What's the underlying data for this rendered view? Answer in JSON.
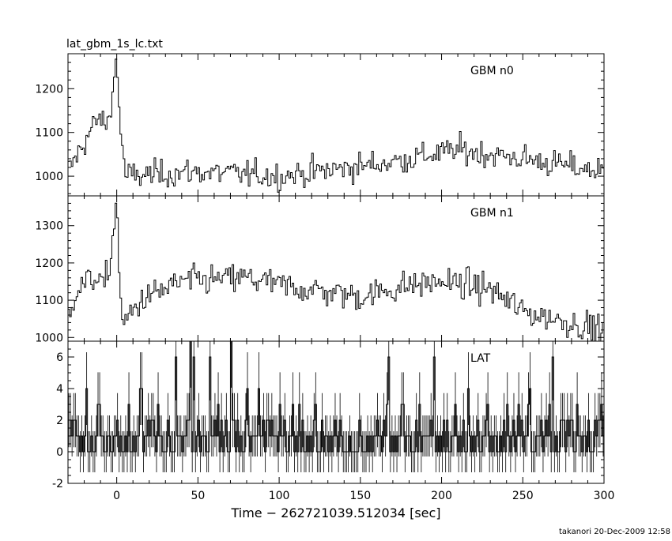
{
  "header": {
    "title": "lat_gbm_1s_lc.txt"
  },
  "footer": {
    "credit": "takanori 20-Dec-2009 12:58"
  },
  "chart_data": [
    {
      "type": "line",
      "style": "histogram",
      "series_name": "GBM n0",
      "xlim": [
        -30,
        300
      ],
      "ylim": [
        955,
        1280
      ],
      "yticks_major": [
        1000,
        1100,
        1200
      ],
      "yminor_step": 20,
      "key_points": [
        {
          "x": -30,
          "y": 1010
        },
        {
          "x": -12,
          "y": 1130
        },
        {
          "x": -5,
          "y": 1120
        },
        {
          "x": 0,
          "y": 1275
        },
        {
          "x": 1,
          "y": 1180
        },
        {
          "x": 5,
          "y": 1000
        },
        {
          "x": 50,
          "y": 1010
        },
        {
          "x": 100,
          "y": 1000
        },
        {
          "x": 165,
          "y": 1030
        },
        {
          "x": 195,
          "y": 1050
        },
        {
          "x": 210,
          "y": 1060
        },
        {
          "x": 250,
          "y": 1040
        },
        {
          "x": 300,
          "y": 1010
        }
      ],
      "noise_amplitude": 22
    },
    {
      "type": "line",
      "style": "histogram",
      "series_name": "GBM n1",
      "xlim": [
        -30,
        300
      ],
      "ylim": [
        990,
        1380
      ],
      "yticks_major": [
        1000,
        1100,
        1200,
        1300
      ],
      "yminor_step": 20,
      "key_points": [
        {
          "x": -30,
          "y": 1050
        },
        {
          "x": -25,
          "y": 1130
        },
        {
          "x": -12,
          "y": 1165
        },
        {
          "x": -8,
          "y": 1130
        },
        {
          "x": -4,
          "y": 1200
        },
        {
          "x": 0,
          "y": 1375
        },
        {
          "x": 1,
          "y": 1250
        },
        {
          "x": 3,
          "y": 1030
        },
        {
          "x": 15,
          "y": 1100
        },
        {
          "x": 40,
          "y": 1150
        },
        {
          "x": 80,
          "y": 1160
        },
        {
          "x": 100,
          "y": 1140
        },
        {
          "x": 150,
          "y": 1110
        },
        {
          "x": 180,
          "y": 1140
        },
        {
          "x": 200,
          "y": 1150
        },
        {
          "x": 230,
          "y": 1130
        },
        {
          "x": 250,
          "y": 1070
        },
        {
          "x": 280,
          "y": 1040
        },
        {
          "x": 300,
          "y": 1020
        }
      ],
      "noise_amplitude": 28
    },
    {
      "type": "line",
      "style": "histogram",
      "series_name": "LAT",
      "xlabel": "Time − 262721039.512034 [sec]",
      "xticks": [
        0,
        50,
        100,
        150,
        200,
        250,
        300
      ],
      "xlim": [
        -30,
        300
      ],
      "ylim": [
        -2,
        7
      ],
      "yticks_major": [
        -2,
        0,
        2,
        4,
        6
      ],
      "yminor_step": 0.5,
      "distribution": "Poisson counts per 1 s bin, mean ≈ 1",
      "spikes": [
        {
          "x": 45,
          "y": 7
        },
        {
          "x": 47,
          "y": 6
        },
        {
          "x": 70,
          "y": 7
        },
        {
          "x": 57,
          "y": 6
        },
        {
          "x": 36,
          "y": 6
        },
        {
          "x": 167,
          "y": 6
        },
        {
          "x": 195,
          "y": 6
        },
        {
          "x": 268,
          "y": 6
        }
      ]
    }
  ]
}
